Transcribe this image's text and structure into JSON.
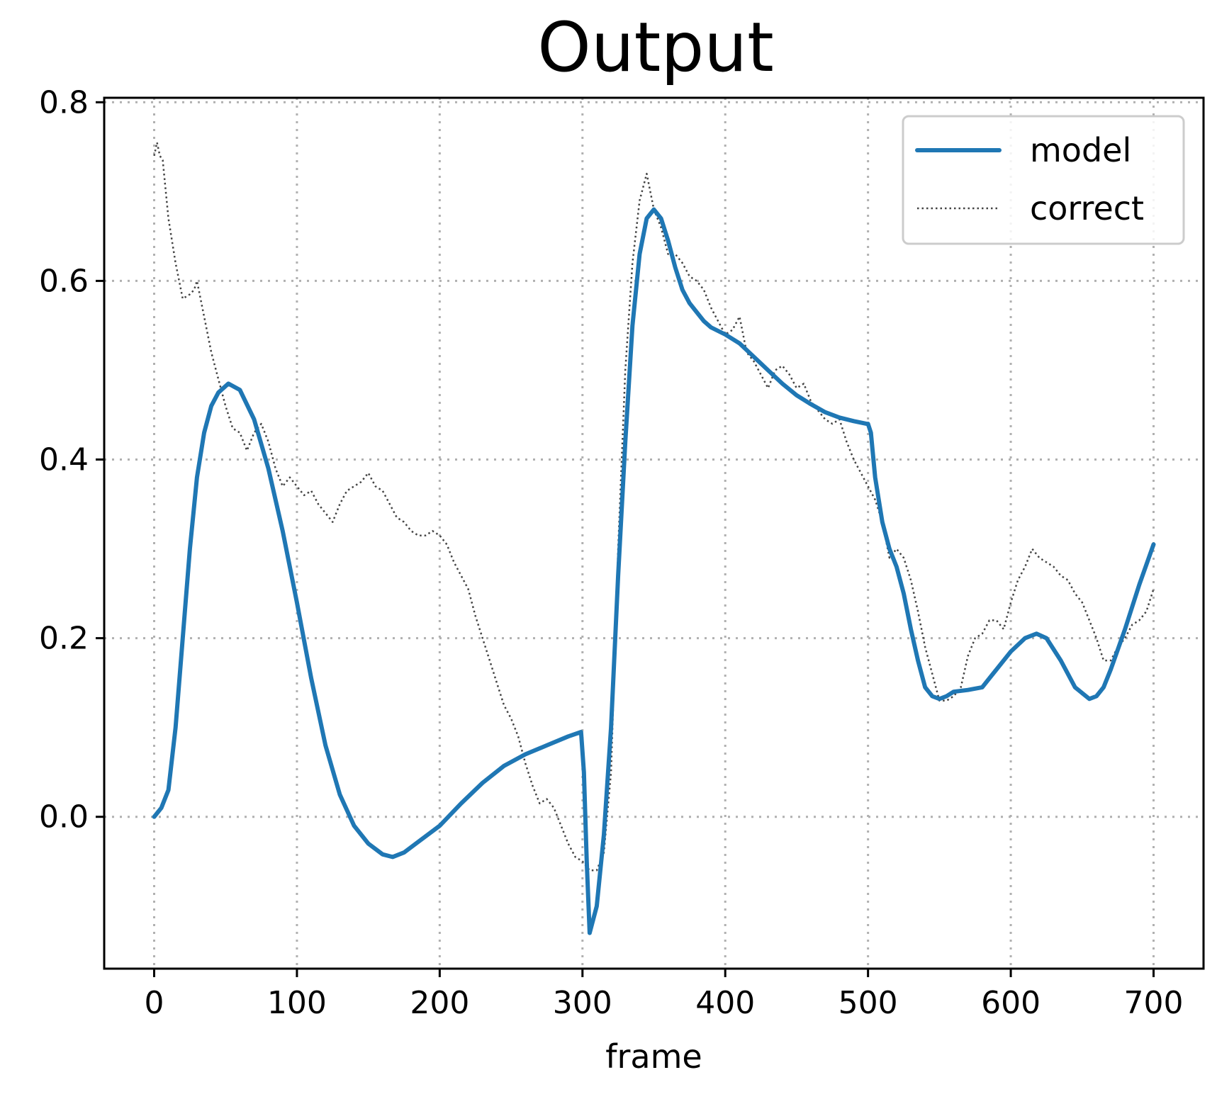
{
  "chart_data": {
    "type": "line",
    "title": "Output",
    "xlabel": "frame",
    "ylabel": "",
    "xlim": [
      -35,
      735
    ],
    "ylim": [
      -0.17,
      0.805
    ],
    "xticks": [
      0,
      100,
      200,
      300,
      400,
      500,
      600,
      700
    ],
    "yticks": [
      0.0,
      0.2,
      0.4,
      0.6,
      0.8
    ],
    "xtick_labels": [
      "0",
      "100",
      "200",
      "300",
      "400",
      "500",
      "600",
      "700"
    ],
    "ytick_labels": [
      "0.0",
      "0.2",
      "0.4",
      "0.6",
      "0.8"
    ],
    "grid": true,
    "legend_position": "top-right",
    "series": [
      {
        "name": "model",
        "color": "#1f77b4",
        "style": "solid",
        "x": [
          0,
          5,
          10,
          15,
          20,
          25,
          30,
          35,
          40,
          45,
          52,
          60,
          70,
          80,
          90,
          100,
          110,
          120,
          130,
          140,
          150,
          160,
          167,
          175,
          185,
          200,
          215,
          230,
          245,
          260,
          275,
          290,
          299,
          301,
          303,
          305,
          310,
          315,
          320,
          325,
          330,
          335,
          340,
          345,
          350,
          355,
          360,
          365,
          370,
          375,
          380,
          385,
          390,
          400,
          410,
          420,
          430,
          440,
          450,
          460,
          470,
          480,
          490,
          499,
          500,
          502,
          505,
          510,
          515,
          520,
          525,
          530,
          535,
          540,
          545,
          550,
          555,
          560,
          570,
          580,
          590,
          600,
          610,
          618,
          625,
          635,
          645,
          655,
          660,
          665,
          670,
          680,
          690,
          700
        ],
        "y": [
          0.0,
          0.01,
          0.03,
          0.1,
          0.2,
          0.3,
          0.38,
          0.43,
          0.46,
          0.475,
          0.485,
          0.478,
          0.445,
          0.39,
          0.32,
          0.24,
          0.155,
          0.08,
          0.025,
          -0.01,
          -0.03,
          -0.042,
          -0.045,
          -0.04,
          -0.028,
          -0.01,
          0.015,
          0.038,
          0.057,
          0.07,
          0.08,
          0.09,
          0.095,
          0.05,
          -0.05,
          -0.13,
          -0.1,
          -0.02,
          0.1,
          0.27,
          0.42,
          0.55,
          0.63,
          0.67,
          0.68,
          0.67,
          0.645,
          0.615,
          0.59,
          0.575,
          0.565,
          0.555,
          0.548,
          0.54,
          0.53,
          0.515,
          0.5,
          0.485,
          0.472,
          0.462,
          0.453,
          0.447,
          0.443,
          0.44,
          0.44,
          0.43,
          0.38,
          0.33,
          0.3,
          0.28,
          0.25,
          0.21,
          0.175,
          0.145,
          0.135,
          0.132,
          0.135,
          0.14,
          0.142,
          0.145,
          0.165,
          0.185,
          0.2,
          0.205,
          0.2,
          0.175,
          0.145,
          0.132,
          0.135,
          0.145,
          0.165,
          0.21,
          0.26,
          0.305
        ]
      },
      {
        "name": "correct",
        "color": "#444444",
        "style": "dotted",
        "x": [
          0,
          2,
          4,
          6,
          10,
          15,
          20,
          25,
          28,
          30,
          35,
          40,
          45,
          50,
          55,
          60,
          65,
          70,
          75,
          80,
          85,
          90,
          95,
          100,
          105,
          110,
          115,
          120,
          125,
          130,
          135,
          140,
          145,
          150,
          155,
          160,
          165,
          170,
          175,
          180,
          185,
          190,
          195,
          200,
          205,
          210,
          215,
          220,
          225,
          230,
          235,
          240,
          245,
          250,
          255,
          260,
          265,
          270,
          275,
          280,
          285,
          290,
          295,
          300,
          305,
          310,
          315,
          320,
          325,
          330,
          335,
          340,
          345,
          350,
          355,
          360,
          365,
          370,
          375,
          380,
          385,
          390,
          395,
          400,
          405,
          410,
          415,
          420,
          425,
          430,
          435,
          440,
          445,
          450,
          455,
          460,
          465,
          470,
          475,
          480,
          485,
          490,
          495,
          500,
          505,
          510,
          515,
          520,
          525,
          530,
          535,
          540,
          545,
          550,
          555,
          560,
          565,
          570,
          575,
          580,
          585,
          590,
          595,
          600,
          605,
          610,
          615,
          620,
          625,
          630,
          635,
          640,
          645,
          650,
          655,
          660,
          665,
          670,
          675,
          680,
          685,
          690,
          695,
          700
        ],
        "y": [
          0.74,
          0.755,
          0.74,
          0.735,
          0.67,
          0.62,
          0.58,
          0.585,
          0.59,
          0.6,
          0.56,
          0.52,
          0.49,
          0.46,
          0.435,
          0.43,
          0.41,
          0.43,
          0.44,
          0.42,
          0.39,
          0.37,
          0.38,
          0.37,
          0.36,
          0.365,
          0.35,
          0.34,
          0.33,
          0.35,
          0.365,
          0.37,
          0.375,
          0.385,
          0.37,
          0.365,
          0.35,
          0.335,
          0.33,
          0.32,
          0.315,
          0.315,
          0.32,
          0.315,
          0.305,
          0.285,
          0.27,
          0.255,
          0.225,
          0.2,
          0.175,
          0.15,
          0.125,
          0.11,
          0.09,
          0.06,
          0.035,
          0.015,
          0.02,
          0.01,
          -0.01,
          -0.03,
          -0.045,
          -0.05,
          -0.06,
          -0.06,
          -0.04,
          0.05,
          0.3,
          0.5,
          0.62,
          0.69,
          0.72,
          0.68,
          0.66,
          0.63,
          0.63,
          0.62,
          0.605,
          0.6,
          0.59,
          0.57,
          0.555,
          0.54,
          0.545,
          0.56,
          0.52,
          0.51,
          0.495,
          0.48,
          0.5,
          0.505,
          0.495,
          0.48,
          0.485,
          0.465,
          0.455,
          0.445,
          0.44,
          0.445,
          0.42,
          0.4,
          0.385,
          0.37,
          0.355,
          0.33,
          0.29,
          0.3,
          0.29,
          0.265,
          0.23,
          0.19,
          0.16,
          0.13,
          0.13,
          0.135,
          0.145,
          0.18,
          0.2,
          0.205,
          0.22,
          0.22,
          0.21,
          0.24,
          0.265,
          0.28,
          0.3,
          0.29,
          0.285,
          0.28,
          0.27,
          0.265,
          0.25,
          0.24,
          0.22,
          0.2,
          0.175,
          0.175,
          0.19,
          0.2,
          0.215,
          0.22,
          0.23,
          0.255
        ]
      }
    ]
  }
}
